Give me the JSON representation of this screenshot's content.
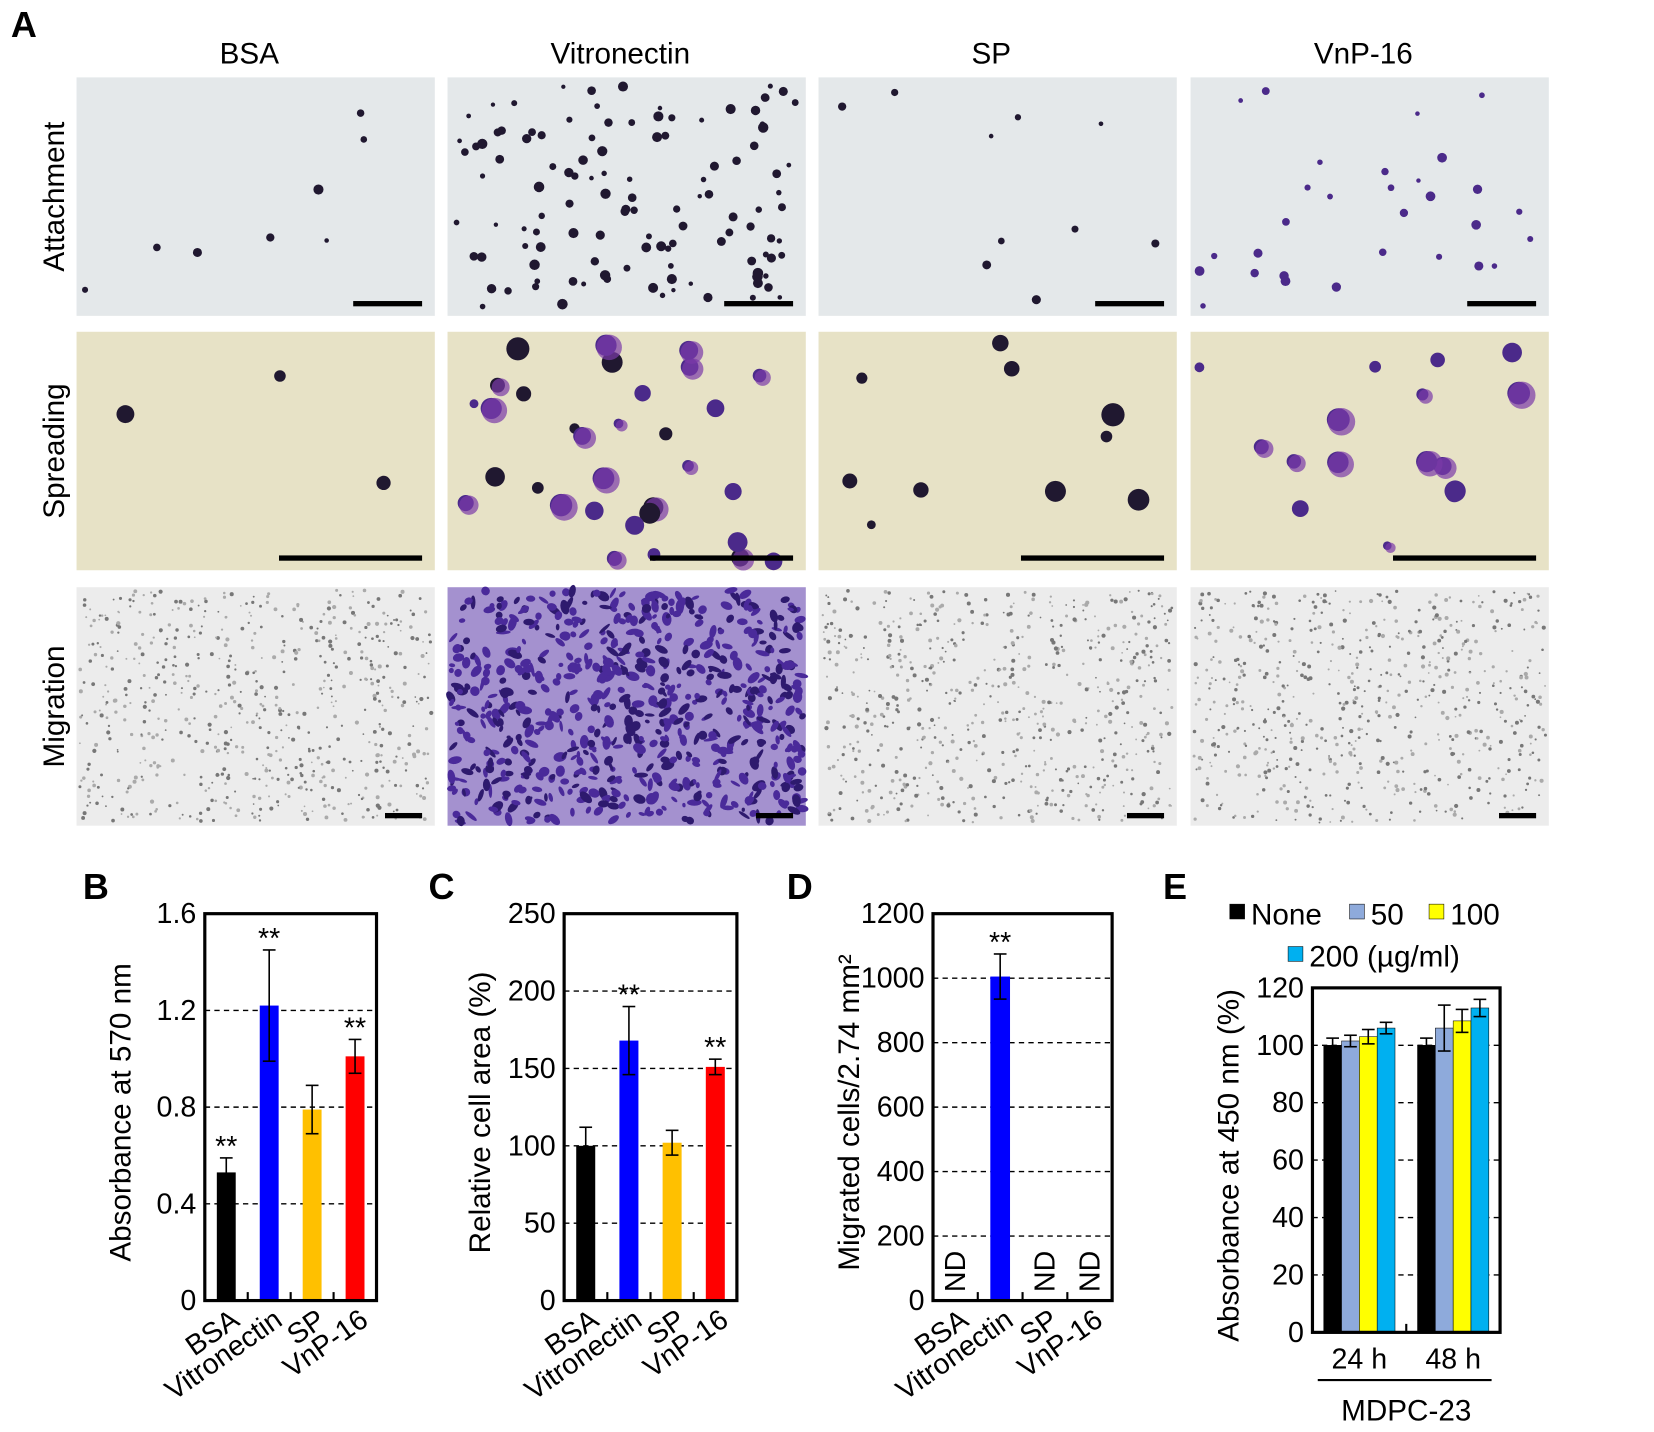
{
  "panel_a": {
    "label": "A",
    "columns": [
      "BSA",
      "Vitronectin",
      "SP",
      "VnP-16"
    ],
    "rows": [
      "Attachment",
      "Spreading",
      "Migration"
    ]
  },
  "chart_data": [
    {
      "type": "bar",
      "panel_label": "B",
      "ylabel": "Absorbance at 570 nm",
      "categories": [
        "BSA",
        "Vitronectin",
        "SP",
        "VnP-16"
      ],
      "values": [
        0.53,
        1.22,
        0.79,
        1.01
      ],
      "errors": [
        0.06,
        0.23,
        0.1,
        0.07
      ],
      "colors": [
        "#000000",
        "#0000ff",
        "#ffc000",
        "#ff0000"
      ],
      "significance": [
        "**",
        "**",
        null,
        "**"
      ],
      "ylim": [
        0,
        1.6
      ],
      "yticks": [
        0,
        0.4,
        0.8,
        1.2,
        1.6
      ],
      "grid": true
    },
    {
      "type": "bar",
      "panel_label": "C",
      "ylabel": "Relative cell area (%)",
      "categories": [
        "BSA",
        "Vitronectin",
        "SP",
        "VnP-16"
      ],
      "values": [
        100,
        168,
        102,
        151
      ],
      "errors": [
        12,
        22,
        8,
        5
      ],
      "colors": [
        "#000000",
        "#0000ff",
        "#ffc000",
        "#ff0000"
      ],
      "significance": [
        null,
        "**",
        null,
        "**"
      ],
      "ylim": [
        0,
        250
      ],
      "yticks": [
        0,
        50,
        100,
        150,
        200,
        250
      ],
      "grid": true
    },
    {
      "type": "bar",
      "panel_label": "D",
      "ylabel": "Migrated cells/2.74 mm²",
      "categories": [
        "BSA",
        "Vitronectin",
        "SP",
        "VnP-16"
      ],
      "values": [
        null,
        1005,
        null,
        null
      ],
      "errors": [
        null,
        70,
        null,
        null
      ],
      "value_labels": [
        "ND",
        null,
        "ND",
        "ND"
      ],
      "color": "#0000ff",
      "significance": [
        null,
        "**",
        null,
        null
      ],
      "ylim": [
        0,
        1200
      ],
      "yticks": [
        0,
        200,
        400,
        600,
        800,
        1000,
        1200
      ],
      "grid": true
    },
    {
      "type": "grouped_bar",
      "panel_label": "E",
      "ylabel": "Absorbance at 450 nm (%)",
      "xlabel": "MDPC-23",
      "categories": [
        "24 h",
        "48 h"
      ],
      "series": [
        {
          "name": "None",
          "color": "#000000",
          "values": [
            100,
            100
          ],
          "errors": [
            2.5,
            2.5
          ]
        },
        {
          "name": "50",
          "color": "#8eaadb",
          "values": [
            101.5,
            106
          ],
          "errors": [
            2,
            8
          ]
        },
        {
          "name": "100",
          "color": "#ffff00",
          "values": [
            103,
            108.5
          ],
          "errors": [
            2.5,
            4
          ]
        },
        {
          "name": "200 (µg/ml)",
          "color": "#00b0f0",
          "values": [
            106,
            113
          ],
          "errors": [
            2,
            3
          ]
        }
      ],
      "ylim": [
        0,
        120
      ],
      "yticks": [
        0,
        20,
        40,
        60,
        80,
        100,
        120
      ],
      "grid": true
    }
  ]
}
